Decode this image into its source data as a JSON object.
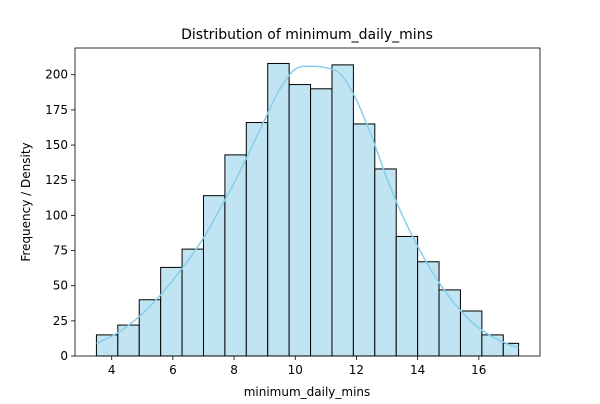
{
  "chart_data": {
    "type": "bar",
    "title": "Distribution of minimum_daily_mins",
    "xlabel": "minimum_daily_mins",
    "ylabel": "Frequency / Density",
    "xlim": [
      2.8,
      18.0
    ],
    "ylim": [
      0,
      219
    ],
    "xticks": [
      4,
      6,
      8,
      10,
      12,
      14,
      16
    ],
    "yticks": [
      0,
      25,
      50,
      75,
      100,
      125,
      150,
      175,
      200
    ],
    "bins": [
      {
        "x0": 3.5,
        "x1": 4.2,
        "count": 15
      },
      {
        "x0": 4.2,
        "x1": 4.9,
        "count": 22
      },
      {
        "x0": 4.9,
        "x1": 5.6,
        "count": 40
      },
      {
        "x0": 5.6,
        "x1": 6.3,
        "count": 63
      },
      {
        "x0": 6.3,
        "x1": 7.0,
        "count": 76
      },
      {
        "x0": 7.0,
        "x1": 7.7,
        "count": 114
      },
      {
        "x0": 7.7,
        "x1": 8.4,
        "count": 143
      },
      {
        "x0": 8.4,
        "x1": 9.1,
        "count": 166
      },
      {
        "x0": 9.1,
        "x1": 9.8,
        "count": 208
      },
      {
        "x0": 9.8,
        "x1": 10.5,
        "count": 193
      },
      {
        "x0": 10.5,
        "x1": 11.2,
        "count": 190
      },
      {
        "x0": 11.2,
        "x1": 11.9,
        "count": 207
      },
      {
        "x0": 11.9,
        "x1": 12.6,
        "count": 165
      },
      {
        "x0": 12.6,
        "x1": 13.3,
        "count": 133
      },
      {
        "x0": 13.3,
        "x1": 14.0,
        "count": 85
      },
      {
        "x0": 14.0,
        "x1": 14.7,
        "count": 67
      },
      {
        "x0": 14.7,
        "x1": 15.4,
        "count": 47
      },
      {
        "x0": 15.4,
        "x1": 16.1,
        "count": 32
      },
      {
        "x0": 16.1,
        "x1": 16.8,
        "count": 15
      },
      {
        "x0": 16.8,
        "x1": 17.3,
        "count": 9
      }
    ],
    "kde": {
      "x": [
        3.5,
        4.0,
        4.5,
        5.0,
        5.5,
        6.0,
        6.5,
        7.0,
        7.5,
        8.0,
        8.5,
        9.0,
        9.5,
        10.0,
        10.5,
        11.0,
        11.5,
        12.0,
        12.5,
        13.0,
        13.5,
        14.0,
        14.5,
        15.0,
        15.5,
        16.0,
        16.5,
        17.0,
        17.3
      ],
      "y": [
        9,
        14,
        21,
        30,
        41,
        54,
        68,
        84,
        103,
        123,
        145,
        168,
        190,
        204,
        206,
        205,
        200,
        182,
        156,
        126,
        100,
        78,
        59,
        43,
        30,
        20,
        13,
        8,
        6
      ]
    },
    "colors": {
      "bar_fill": "#c1e4f2",
      "bar_edge": "#000000",
      "kde_line": "#87ceeb"
    },
    "grid": false,
    "legend": false
  }
}
